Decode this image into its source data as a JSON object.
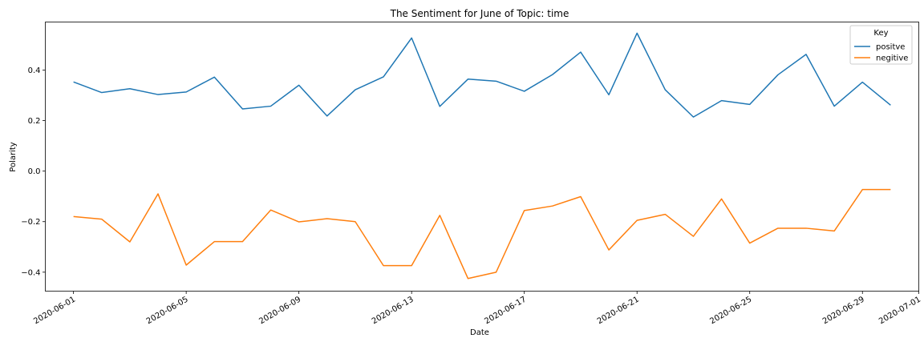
{
  "chart_data": {
    "type": "line",
    "title": "The Sentiment for June of Topic: time",
    "xlabel": "Date",
    "ylabel": "Polarity",
    "x": [
      "2020-06-01",
      "2020-06-02",
      "2020-06-03",
      "2020-06-04",
      "2020-06-05",
      "2020-06-06",
      "2020-06-07",
      "2020-06-08",
      "2020-06-09",
      "2020-06-10",
      "2020-06-11",
      "2020-06-12",
      "2020-06-13",
      "2020-06-14",
      "2020-06-15",
      "2020-06-16",
      "2020-06-17",
      "2020-06-18",
      "2020-06-19",
      "2020-06-20",
      "2020-06-21",
      "2020-06-22",
      "2020-06-23",
      "2020-06-24",
      "2020-06-25",
      "2020-06-26",
      "2020-06-27",
      "2020-06-28",
      "2020-06-29",
      "2020-06-30"
    ],
    "x_ticks": [
      "2020-06-01",
      "2020-06-05",
      "2020-06-09",
      "2020-06-13",
      "2020-06-17",
      "2020-06-21",
      "2020-06-25",
      "2020-06-29",
      "2020-07-01"
    ],
    "xlim": [
      "2020-05-31",
      "2020-07-01"
    ],
    "y_ticks": [
      0.4,
      0.2,
      0.0,
      -0.2,
      -0.4
    ],
    "y_tick_labels": [
      "0.4",
      "0.2",
      "0.0",
      "−0.2",
      "−0.4"
    ],
    "ylim": [
      -0.475,
      0.59
    ],
    "grid": false,
    "legend": {
      "title": "Key",
      "placement": "top-right"
    },
    "series": [
      {
        "name": "positve",
        "color": "#1f77b4",
        "values": [
          0.353,
          0.311,
          0.326,
          0.303,
          0.313,
          0.372,
          0.246,
          0.257,
          0.34,
          0.218,
          0.322,
          0.373,
          0.527,
          0.256,
          0.364,
          0.356,
          0.316,
          0.382,
          0.471,
          0.302,
          0.546,
          0.322,
          0.214,
          0.279,
          0.264,
          0.381,
          0.462,
          0.257,
          0.352,
          0.261
        ]
      },
      {
        "name": "negitive",
        "color": "#ff7f0e",
        "values": [
          -0.18,
          -0.19,
          -0.28,
          -0.09,
          -0.372,
          -0.279,
          -0.279,
          -0.154,
          -0.201,
          -0.188,
          -0.2,
          -0.374,
          -0.374,
          -0.175,
          -0.425,
          -0.4,
          -0.156,
          -0.138,
          -0.101,
          -0.312,
          -0.195,
          -0.171,
          -0.258,
          -0.11,
          -0.285,
          -0.226,
          -0.226,
          -0.237,
          -0.073,
          -0.073
        ]
      }
    ]
  }
}
